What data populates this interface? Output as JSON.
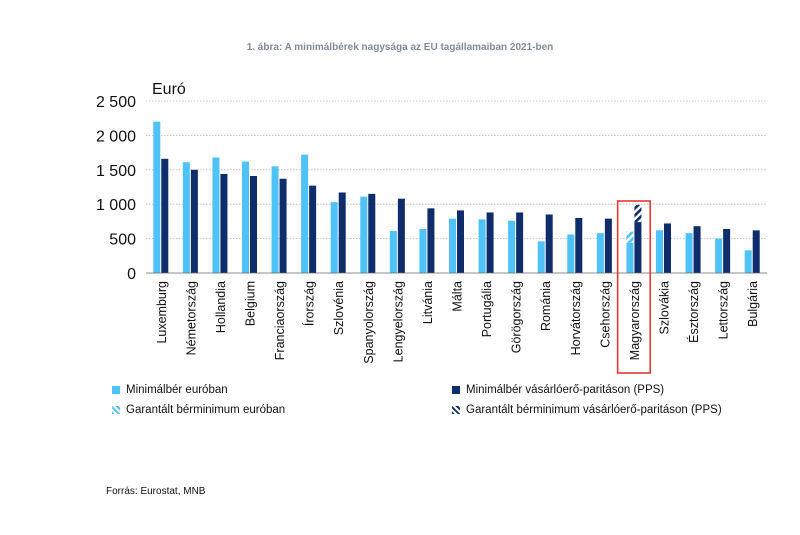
{
  "chart_data": {
    "type": "bar",
    "title": "1. ábra: A minimálbérek nagysága az EU tagállamaiban 2021-ben",
    "ylabel": "Euró",
    "ylim": [
      0,
      2500
    ],
    "yticks": [
      0,
      500,
      1000,
      1500,
      2000,
      2500
    ],
    "ytick_labels": [
      "0",
      "500",
      "1 000",
      "1 500",
      "2 000",
      "2 500"
    ],
    "grid": true,
    "categories": [
      "Luxemburg",
      "Németország",
      "Hollandia",
      "Belgium",
      "Franciaország",
      "Írország",
      "Szlovénia",
      "Spanyolország",
      "Lengyelország",
      "Litvánia",
      "Málta",
      "Portugália",
      "Görögország",
      "Románia",
      "Horvátország",
      "Csehország",
      "Magyarország",
      "Szlovákia",
      "Észtország",
      "Lettország",
      "Bulgária"
    ],
    "series": [
      {
        "name": "Minimálbér euróban",
        "color": "#4fc3f7",
        "values": [
          2200,
          1610,
          1680,
          1620,
          1550,
          1720,
          1030,
          1110,
          610,
          640,
          790,
          780,
          760,
          460,
          560,
          580,
          440,
          620,
          580,
          500,
          330
        ]
      },
      {
        "name": "Minimálbér vásárlóerő-paritáson (PPS)",
        "color": "#0f2d6b",
        "values": [
          1660,
          1500,
          1440,
          1410,
          1370,
          1270,
          1170,
          1150,
          1080,
          940,
          910,
          880,
          880,
          850,
          800,
          790,
          740,
          720,
          680,
          640,
          620
        ]
      },
      {
        "name": "Garantált bérminimum euróban",
        "color": "#4fc3f7",
        "pattern": "hatched",
        "values": [
          null,
          null,
          null,
          null,
          null,
          null,
          null,
          null,
          null,
          null,
          null,
          null,
          null,
          null,
          null,
          null,
          600,
          null,
          null,
          null,
          null
        ]
      },
      {
        "name": "Garantált bérminimum vásárlóerő-paritáson (PPS)",
        "color": "#0f2d6b",
        "pattern": "hatched",
        "values": [
          null,
          null,
          null,
          null,
          null,
          null,
          null,
          null,
          null,
          null,
          null,
          null,
          null,
          null,
          null,
          null,
          990,
          null,
          null,
          null,
          null
        ]
      }
    ],
    "highlight": {
      "category": "Magyarország",
      "color": "#e53935"
    },
    "legend_placement": "bottom"
  },
  "source": "Forrás: Eurostat, MNB"
}
